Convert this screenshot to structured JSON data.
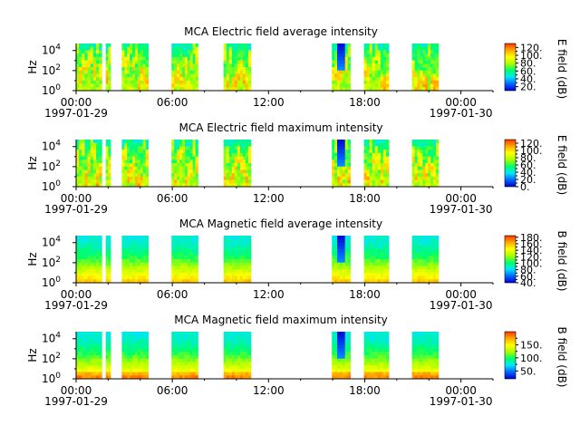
{
  "chart_data": [
    {
      "type": "heatmap",
      "title": "MCA  Electric field average intensity",
      "ylabel": "Hz",
      "y_scale": "log",
      "y_ticks": [
        "10^0",
        "10^2",
        "10^4"
      ],
      "x_ticks": [
        "00:00",
        "06:00",
        "12:00",
        "18:00",
        "00:00"
      ],
      "x_start_date": "1997-01-29",
      "x_end_date": "1997-01-30",
      "colorbar_label": "E field (dB)",
      "colorbar_ticks": [
        "20.",
        "40.",
        "60.",
        "80.",
        "100.",
        "120."
      ],
      "colorbar_range": [
        10,
        130
      ],
      "data_intervals_hours": [
        [
          0.0,
          1.6
        ],
        [
          1.85,
          2.15
        ],
        [
          2.85,
          4.5
        ],
        [
          5.95,
          7.6
        ],
        [
          9.2,
          10.9
        ],
        [
          15.95,
          17.1
        ],
        [
          17.95,
          19.5
        ],
        [
          20.95,
          22.6
        ]
      ]
    },
    {
      "type": "heatmap",
      "title": "MCA  Electric field maximum intensity",
      "ylabel": "Hz",
      "y_scale": "log",
      "y_ticks": [
        "10^0",
        "10^2",
        "10^4"
      ],
      "x_ticks": [
        "00:00",
        "06:00",
        "12:00",
        "18:00",
        "00:00"
      ],
      "x_start_date": "1997-01-29",
      "x_end_date": "1997-01-30",
      "colorbar_label": "E field (dB)",
      "colorbar_ticks": [
        "0.",
        "20.",
        "40.",
        "60.",
        "80.",
        "100.",
        "120."
      ],
      "colorbar_range": [
        0,
        130
      ],
      "data_intervals_hours": [
        [
          0.0,
          1.6
        ],
        [
          1.85,
          2.15
        ],
        [
          2.85,
          4.5
        ],
        [
          5.95,
          7.6
        ],
        [
          9.2,
          10.9
        ],
        [
          15.95,
          17.1
        ],
        [
          17.95,
          19.5
        ],
        [
          20.95,
          22.6
        ]
      ]
    },
    {
      "type": "heatmap",
      "title": "MCA  Magnetic field average intensity",
      "ylabel": "Hz",
      "y_scale": "log",
      "y_ticks": [
        "10^0",
        "10^2",
        "10^4"
      ],
      "x_ticks": [
        "00:00",
        "06:00",
        "12:00",
        "18:00",
        "00:00"
      ],
      "x_start_date": "1997-01-29",
      "x_end_date": "1997-01-30",
      "colorbar_label": "B field (dB)",
      "colorbar_ticks": [
        "40.",
        "60.",
        "80.",
        "100.",
        "120.",
        "140.",
        "160.",
        "180."
      ],
      "colorbar_range": [
        40,
        185
      ],
      "data_intervals_hours": [
        [
          0.0,
          1.6
        ],
        [
          1.85,
          2.15
        ],
        [
          2.85,
          4.5
        ],
        [
          5.95,
          7.6
        ],
        [
          9.2,
          10.9
        ],
        [
          15.95,
          17.1
        ],
        [
          17.95,
          19.5
        ],
        [
          20.95,
          22.6
        ]
      ]
    },
    {
      "type": "heatmap",
      "title": "MCA  Magnetic field maximum intensity",
      "ylabel": "Hz",
      "y_scale": "log",
      "y_ticks": [
        "10^0",
        "10^2",
        "10^4"
      ],
      "x_ticks": [
        "00:00",
        "06:00",
        "12:00",
        "18:00",
        "00:00"
      ],
      "x_start_date": "1997-01-29",
      "x_end_date": "1997-01-30",
      "colorbar_label": "B field (dB)",
      "colorbar_ticks": [
        "50.",
        "100.",
        "150."
      ],
      "colorbar_range": [
        20,
        200
      ],
      "data_intervals_hours": [
        [
          0.0,
          1.6
        ],
        [
          1.85,
          2.15
        ],
        [
          2.85,
          4.5
        ],
        [
          5.95,
          7.6
        ],
        [
          9.2,
          10.9
        ],
        [
          15.95,
          17.1
        ],
        [
          17.95,
          19.5
        ],
        [
          20.95,
          22.6
        ]
      ]
    }
  ],
  "colormap_stops": [
    "#0000cc",
    "#0066ff",
    "#00e5ff",
    "#00ff66",
    "#aaff00",
    "#ffff00",
    "#ffaa00",
    "#ff3300"
  ]
}
